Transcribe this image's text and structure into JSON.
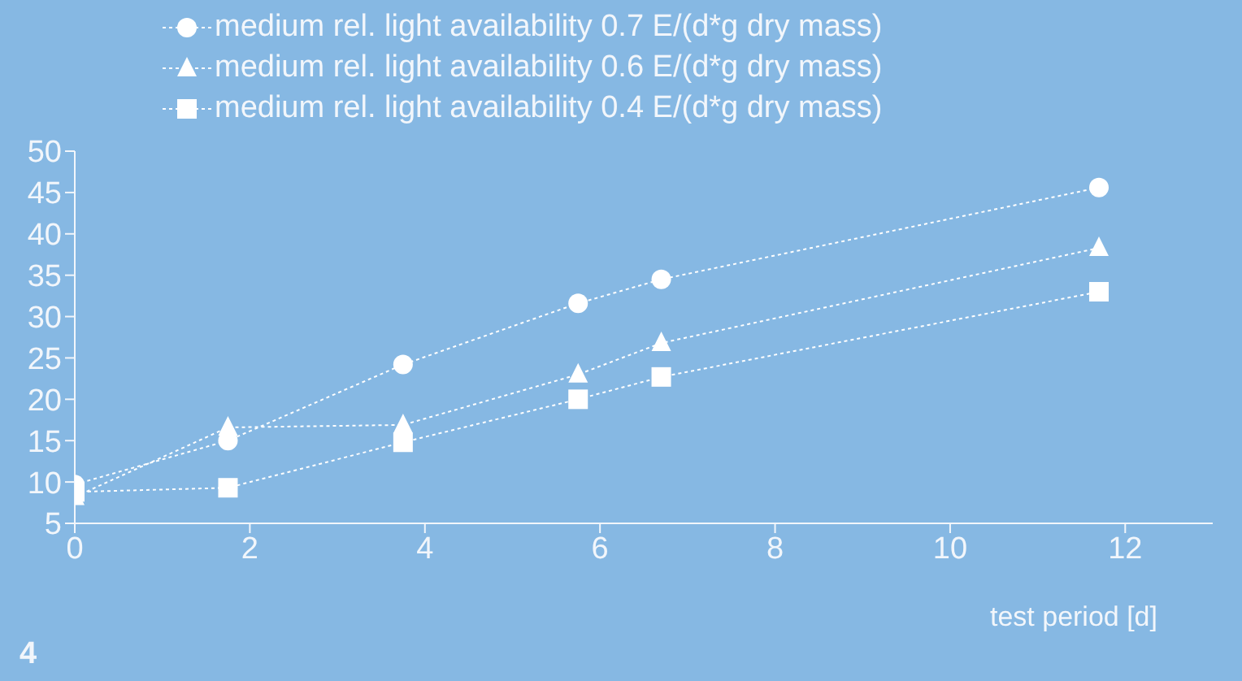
{
  "chart_data": {
    "type": "line",
    "xlabel": "test period [d]",
    "annotations": [
      "4"
    ],
    "xlim": [
      0,
      13
    ],
    "xticks": [
      0,
      2,
      4,
      6,
      8,
      10,
      12
    ],
    "ylim": [
      5,
      50
    ],
    "yticks": [
      5,
      10,
      15,
      20,
      25,
      30,
      35,
      40,
      45,
      50
    ],
    "grid": false,
    "legend": "top left",
    "line_style": "dotted",
    "series": [
      {
        "name": "medium rel. light availability 0.7 E/(d*g dry mass)",
        "color": "#ffffff",
        "marker": "circle",
        "x": [
          0,
          1.75,
          3.75,
          5.75,
          6.7,
          11.7
        ],
        "values": [
          9.7,
          15,
          24.2,
          31.6,
          34.5,
          45.6
        ]
      },
      {
        "name": "medium rel. light availability 0.6 E/(d*g dry mass)",
        "color": "#ffffff",
        "marker": "triangle",
        "x": [
          0,
          1.75,
          3.75,
          5.75,
          6.7,
          11.7
        ],
        "values": [
          8.2,
          16.6,
          16.9,
          23,
          26.8,
          38.3
        ]
      },
      {
        "name": "medium rel. light availability 0.4 E/(d*g dry mass)",
        "color": "#ffffff",
        "marker": "square",
        "x": [
          0,
          1.75,
          3.75,
          5.75,
          6.7,
          11.7
        ],
        "values": [
          8.8,
          9.3,
          14.8,
          20,
          22.7,
          33
        ]
      }
    ]
  }
}
